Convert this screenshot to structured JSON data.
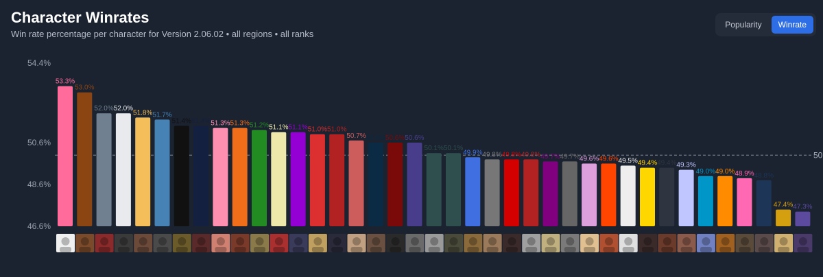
{
  "header": {
    "title": "Character Winrates",
    "subtitle": "Win rate percentage per character for Version 2.06.02 • all regions • all ranks"
  },
  "toggle": {
    "popularity_label": "Popularity",
    "winrate_label": "Winrate",
    "active": "Winrate"
  },
  "chart_data": {
    "type": "bar",
    "title": "Character Winrates",
    "ylabel": "",
    "xlabel": "",
    "ylim": [
      46.6,
      54.4
    ],
    "yticks": [
      "54.4%",
      "50.6%",
      "48.6%",
      "46.6%"
    ],
    "reference_line": {
      "value": 50,
      "label": "50"
    },
    "grid": false,
    "x_axis": "character portraits",
    "values": [
      53.3,
      53.0,
      52.0,
      52.0,
      51.8,
      51.7,
      51.4,
      51.4,
      51.3,
      51.3,
      51.2,
      51.1,
      51.1,
      51.0,
      51.0,
      50.7,
      50.6,
      50.6,
      50.6,
      50.1,
      50.1,
      49.9,
      49.8,
      49.8,
      49.8,
      49.7,
      49.7,
      49.6,
      49.6,
      49.5,
      49.4,
      49.4,
      49.3,
      49.0,
      49.0,
      48.9,
      48.8,
      47.4,
      47.3
    ],
    "labels": [
      "53.3%",
      "53.0%",
      "52.0%",
      "52.0%",
      "51.8%",
      "51.7%",
      "51.4%",
      "51.4%",
      "51.3%",
      "51.3%",
      "51.2%",
      "51.1%",
      "51.1%",
      "51.0%",
      "51.0%",
      "50.7%",
      "50.6%",
      "50.6%",
      "50.6%",
      "50.1%",
      "50.1%",
      "49.9%",
      "49.8%",
      "49.8%",
      "49.8%",
      "49.7%",
      "49.7%",
      "49.6%",
      "49.6%",
      "49.5%",
      "49.4%",
      "49.4%",
      "49.3%",
      "49.0%",
      "49.0%",
      "48.9%",
      "48.8%",
      "47.4%",
      "47.3%"
    ],
    "colors": [
      "#ff6b9a",
      "#8b4513",
      "#708090",
      "#e8eaed",
      "#f4bf5b",
      "#4682b4",
      "#111111",
      "#13203f",
      "#ff8fb1",
      "#f06e1a",
      "#228b22",
      "#eee8aa",
      "#9400d3",
      "#dc2f2f",
      "#b22222",
      "#cd5c5c",
      "#0b2a44",
      "#7a0a0a",
      "#483d8b",
      "#2f4f4f",
      "#2f4f4f",
      "#3f6fe0",
      "#777777",
      "#d40000",
      "#b22222",
      "#800080",
      "#666666",
      "#dda0dd",
      "#ff4500",
      "#eeeeee",
      "#ffd700",
      "#2f3540",
      "#c0c6ff",
      "#0096c7",
      "#ff8c00",
      "#ff69b4",
      "#1d3557",
      "#d4a010",
      "#5b4a9e"
    ],
    "portrait_colors": [
      "#f0f0f0",
      "#7a4a2a",
      "#8b2a2a",
      "#3a3a3a",
      "#6b4a3a",
      "#4a4a4a",
      "#6b5a2a",
      "#5a2a2a",
      "#d08070",
      "#7a3a2a",
      "#8a7a4a",
      "#aa3030",
      "#3a3a5a",
      "#c0a060",
      "#2a2a3a",
      "#c0a080",
      "#6a5040",
      "#2a2a2a",
      "#6a6a6a",
      "#9a9a9a",
      "#4a4a3a",
      "#8a6a3a",
      "#9a7a5a",
      "#3a2a2a",
      "#a0a0a0",
      "#c0b080",
      "#7a7a7a",
      "#e0c090",
      "#b05030",
      "#e0e0e0",
      "#3a2a2a",
      "#6a3a2a",
      "#8a5a4a",
      "#7080c0",
      "#a06020",
      "#5a4a3a",
      "#5a4a4a",
      "#d0b070",
      "#4a3a6a"
    ]
  }
}
